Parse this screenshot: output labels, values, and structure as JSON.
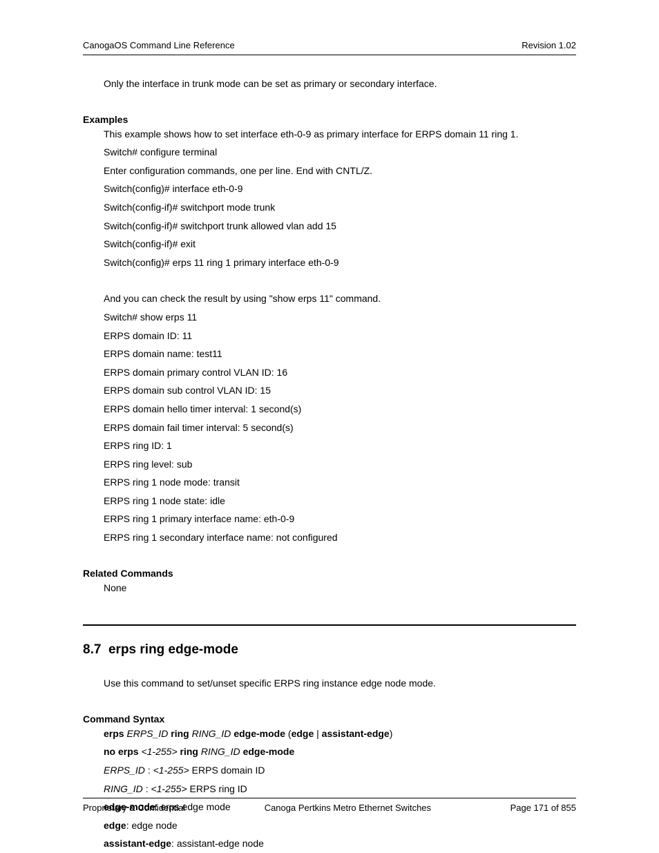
{
  "header": {
    "left": "CanogaOS Command Line Reference",
    "right": "Revision 1.02"
  },
  "intro_line": "Only the interface in trunk mode can be set as primary or secondary interface.",
  "examples": {
    "label": "Examples",
    "lines": [
      "This example shows how to set interface eth-0-9 as primary interface for ERPS domain 11 ring 1.",
      "Switch# configure terminal",
      "Enter configuration commands, one per line.    End with CNTL/Z.",
      "Switch(config)# interface eth-0-9",
      "Switch(config-if)# switchport mode trunk",
      "Switch(config-if)# switchport trunk allowed vlan add 15",
      "Switch(config-if)# exit",
      "Switch(config)# erps 11 ring 1 primary interface eth-0-9"
    ],
    "lines2": [
      "And you can check the result by using \"show erps 11\" command.",
      "Switch# show erps 11",
      "ERPS domain ID: 11",
      "ERPS domain name: test11",
      "ERPS domain primary control VLAN ID: 16",
      "ERPS domain sub control VLAN ID: 15",
      "ERPS domain hello timer interval: 1 second(s)",
      "ERPS domain fail timer interval: 5 second(s)",
      "ERPS ring ID: 1",
      "ERPS ring level: sub",
      "ERPS ring 1 node mode: transit",
      "ERPS ring 1 node state: idle",
      "ERPS ring 1 primary interface name: eth-0-9",
      "ERPS ring 1 secondary interface name: not configured"
    ]
  },
  "related": {
    "label": "Related Commands",
    "value": "None"
  },
  "section": {
    "number": "8.7",
    "title": "erps ring edge-mode",
    "intro": "Use this command to set/unset specific ERPS ring instance edge node mode."
  },
  "syntax": {
    "label": "Command Syntax",
    "l1": {
      "a": "erps ",
      "b": "ERPS_ID ",
      "c": "ring ",
      "d": "RING_ID ",
      "e": "edge-mode ",
      "f": "(",
      "g": "edge",
      "h": " | ",
      "i": "assistant-edge",
      "j": ")"
    },
    "l2": {
      "a": "no erps ",
      "b": "<1-255> ",
      "c": "ring ",
      "d": "RING_ID ",
      "e": "edge-mode"
    },
    "l3": {
      "a": "ERPS_ID ",
      "b": ": ",
      "c": "<1-255>",
      "d": " ERPS domain ID"
    },
    "l4": {
      "a": "RING_ID ",
      "b": ": ",
      "c": "<1-255>",
      "d": " ERPS ring ID"
    },
    "l5": {
      "a": "edge-mode",
      "b": ": erps edge mode"
    },
    "l6": {
      "a": "edge",
      "b": ": edge node"
    },
    "l7": {
      "a": "assistant-edge",
      "b": ": assistant-edge node"
    }
  },
  "footer": {
    "left": "Proprietary & Confidential",
    "center": "Canoga Pertkins Metro Ethernet Switches",
    "right": "Page 171 of 855"
  }
}
